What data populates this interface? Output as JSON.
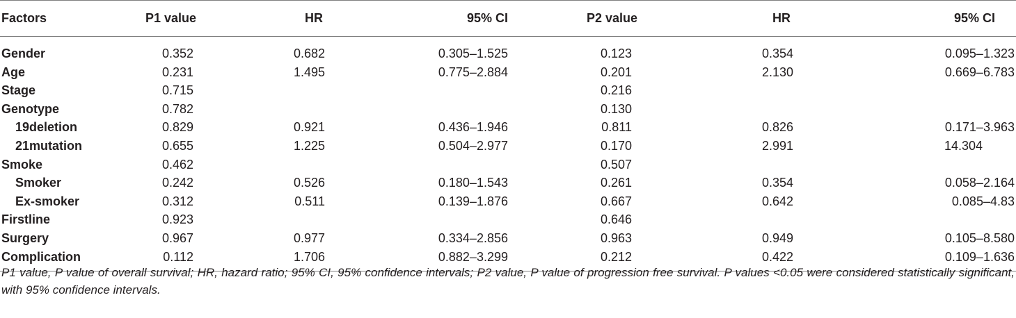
{
  "table": {
    "headers": [
      "Factors",
      "P1 value",
      "HR",
      "95% CI",
      "P2 value",
      "HR",
      "95% CI"
    ],
    "rows": [
      {
        "factor": "Gender",
        "sub": false,
        "p1": "0.352",
        "hr1": "0.682",
        "ci1": "0.305–1.525",
        "p2": "0.123",
        "hr2": "0.354",
        "ci2": "0.095–1.323"
      },
      {
        "factor": "Age",
        "sub": false,
        "p1": "0.231",
        "hr1": "1.495",
        "ci1": "0.775–2.884",
        "p2": "0.201",
        "hr2": "2.130",
        "ci2": "0.669–6.783"
      },
      {
        "factor": "Stage",
        "sub": false,
        "p1": "0.715",
        "hr1": "",
        "ci1": "",
        "p2": "0.216",
        "hr2": "",
        "ci2": ""
      },
      {
        "factor": "Genotype",
        "sub": false,
        "p1": "0.782",
        "hr1": "",
        "ci1": "",
        "p2": "0.130",
        "hr2": "",
        "ci2": ""
      },
      {
        "factor": "19deletion",
        "sub": true,
        "p1": "0.829",
        "hr1": "0.921",
        "ci1": "0.436–1.946",
        "p2": "0.811",
        "hr2": "0.826",
        "ci2": "0.171–3.963"
      },
      {
        "factor": "21mutation",
        "sub": true,
        "p1": "0.655",
        "hr1": "1.225",
        "ci1": "0.504–2.977",
        "p2": "0.170",
        "hr2": "2.991",
        "ci2": "14.304"
      },
      {
        "factor": "Smoke",
        "sub": false,
        "p1": "0.462",
        "hr1": "",
        "ci1": "",
        "p2": "0.507",
        "hr2": "",
        "ci2": ""
      },
      {
        "factor": "Smoker",
        "sub": true,
        "p1": "0.242",
        "hr1": "0.526",
        "ci1": "0.180–1.543",
        "p2": "0.261",
        "hr2": "0.354",
        "ci2": "0.058–2.164"
      },
      {
        "factor": "Ex-smoker",
        "sub": true,
        "p1": "0.312",
        "hr1": "0.511",
        "ci1": "0.139–1.876",
        "p2": "0.667",
        "hr2": "0.642",
        "ci2": "0.085–4.83"
      },
      {
        "factor": "Firstline",
        "sub": false,
        "p1": "0.923",
        "hr1": "",
        "ci1": "",
        "p2": "0.646",
        "hr2": "",
        "ci2": ""
      },
      {
        "factor": "Surgery",
        "sub": false,
        "p1": "0.967",
        "hr1": "0.977",
        "ci1": "0.334–2.856",
        "p2": "0.963",
        "hr2": "0.949",
        "ci2": "0.105–8.580"
      },
      {
        "factor": "Complication",
        "sub": false,
        "p1": "0.112",
        "hr1": "1.706",
        "ci1": "0.882–3.299",
        "p2": "0.212",
        "hr2": "0.422",
        "ci2": "0.109–1.636"
      }
    ]
  },
  "footnote": "P1 value, P value of overall survival; HR, hazard ratio; 95% CI, 95% confidence intervals; P2 value, P value of progression free survival. P values <0.05 were considered statistically significant, with 95% confidence intervals."
}
